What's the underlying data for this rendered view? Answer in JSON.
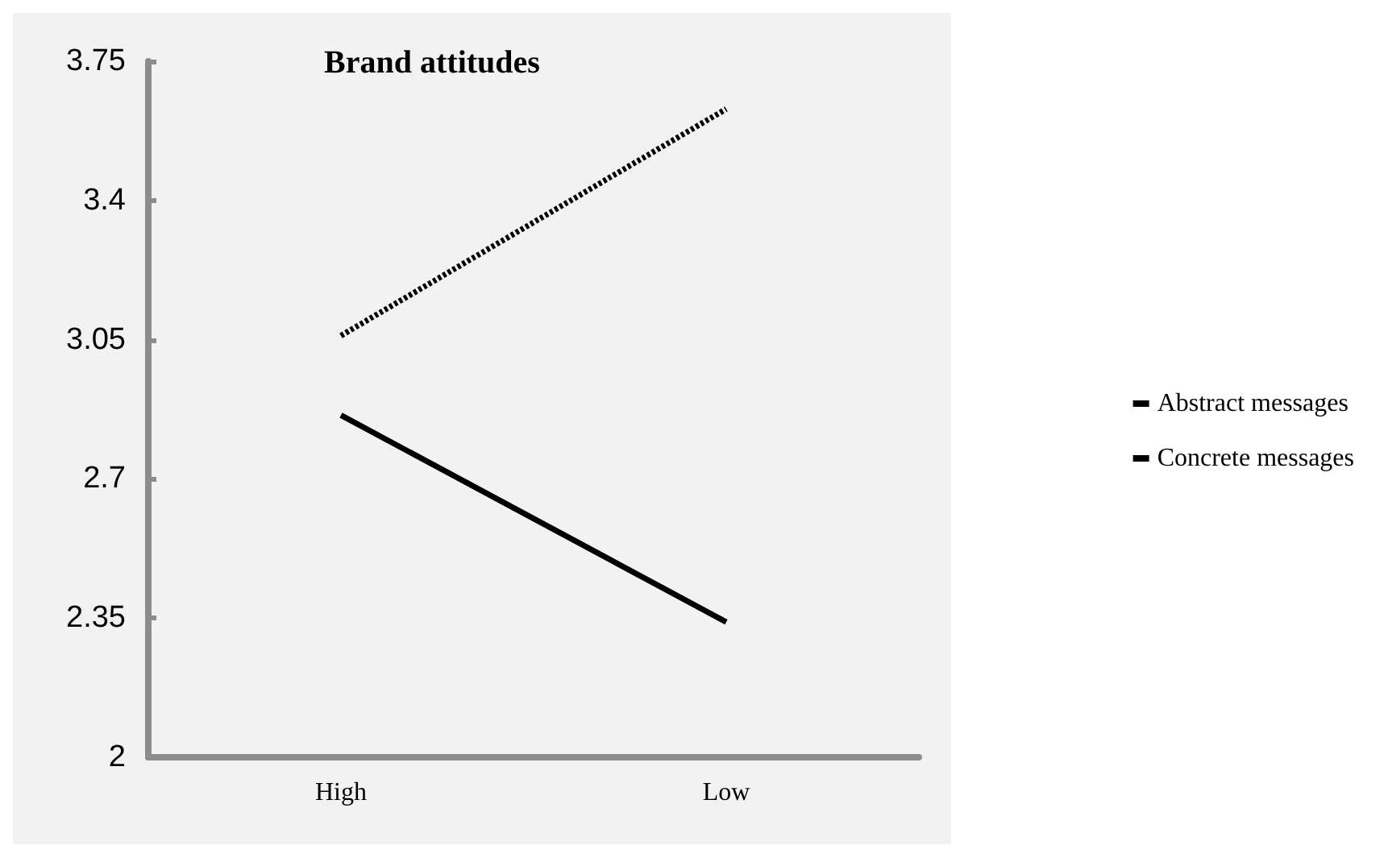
{
  "chart_data": {
    "type": "line",
    "title": "Brand attitudes",
    "categories": [
      "High",
      "Low"
    ],
    "series": [
      {
        "name": "Abstract messages",
        "color": "#000000",
        "line_style": "dotted",
        "values": [
          3.06,
          3.63
        ]
      },
      {
        "name": "Concrete messages",
        "color": "#000000",
        "line_style": "solid",
        "values": [
          2.86,
          2.34
        ]
      }
    ],
    "ylim": [
      2,
      3.75
    ],
    "yticks": [
      2,
      2.35,
      2.7,
      3.05,
      3.4,
      3.75
    ],
    "grid": false,
    "legend": "right",
    "marker": "none"
  }
}
